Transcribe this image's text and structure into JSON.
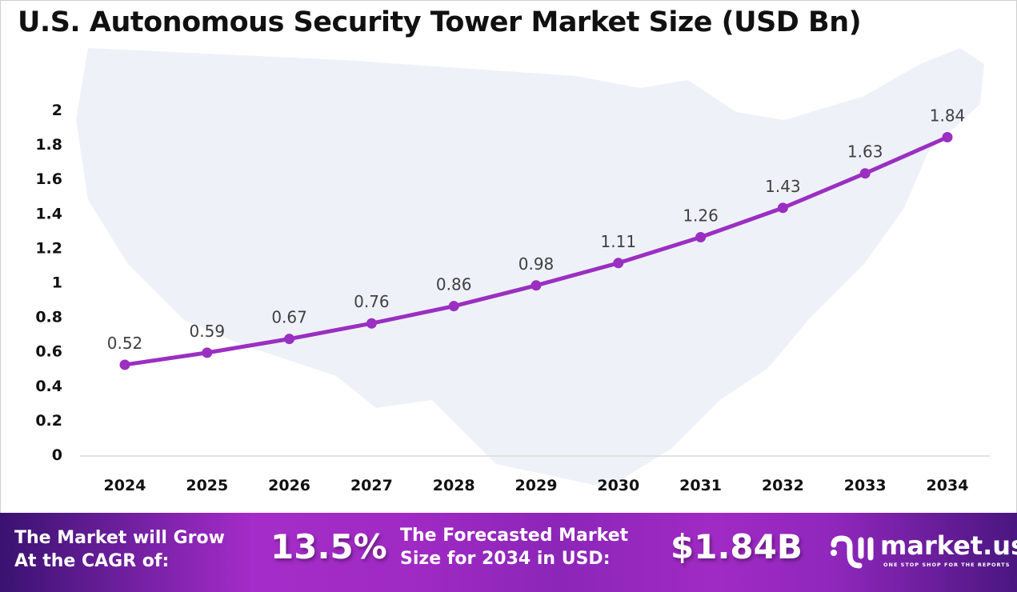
{
  "chart_data": {
    "type": "line",
    "title": "U.S. Autonomous Security Tower Market Size (USD Bn)",
    "categories": [
      "2024",
      "2025",
      "2026",
      "2027",
      "2028",
      "2029",
      "2030",
      "2031",
      "2032",
      "2033",
      "2034"
    ],
    "values": [
      0.52,
      0.59,
      0.67,
      0.76,
      0.86,
      0.98,
      1.11,
      1.26,
      1.43,
      1.63,
      1.84
    ],
    "yticks": [
      "0",
      "0.2",
      "0.4",
      "0.6",
      "0.8",
      "1",
      "1.2",
      "1.4",
      "1.6",
      "1.8",
      "2"
    ],
    "ylim": [
      0,
      2
    ],
    "grid": false,
    "line_color": "#9b2fc2",
    "label_color": "#404040"
  },
  "footer": {
    "cagr_label_line1": "The Market will Grow",
    "cagr_label_line2": "At the CAGR of:",
    "cagr_value": "13.5%",
    "forecast_label_line1": "The Forecasted Market",
    "forecast_label_line2": "Size for 2034 in USD:",
    "forecast_value": "$1.84B",
    "logo_text": "market.us",
    "logo_tagline": "ONE STOP SHOP FOR THE REPORTS"
  }
}
